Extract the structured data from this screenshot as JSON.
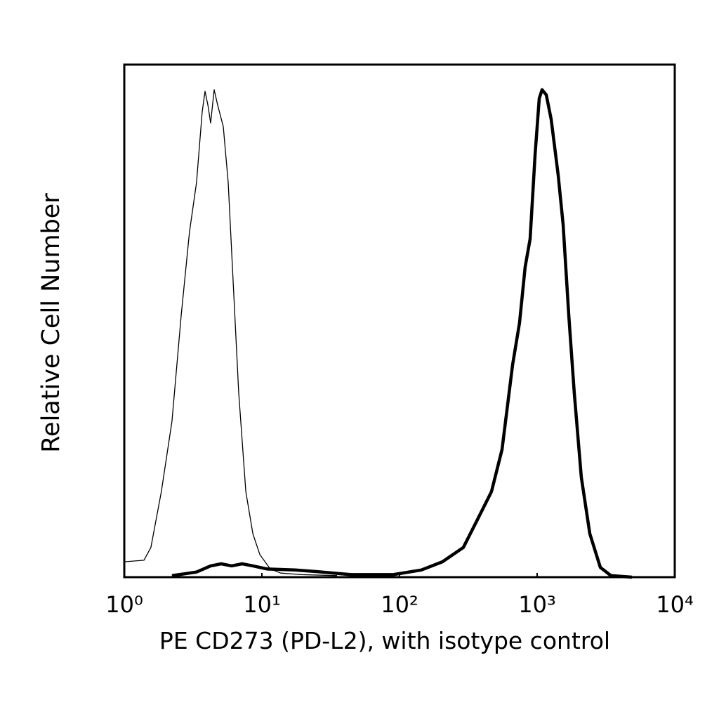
{
  "chart_data": {
    "type": "line",
    "x_label": "PE CD273 (PD-L2), with isotype control",
    "y_label": "Relative Cell Number",
    "xscale": "log",
    "xlim": [
      1,
      10000
    ],
    "xticks": [
      {
        "value": 1,
        "label": "10⁰"
      },
      {
        "value": 10,
        "label": "10¹"
      },
      {
        "value": 100,
        "label": "10²"
      },
      {
        "value": 1000,
        "label": "10³"
      },
      {
        "value": 10000,
        "label": "10⁴"
      }
    ],
    "ylim": [
      0,
      100
    ],
    "series": [
      {
        "color": "#000000",
        "line_width": 1.3,
        "x": [
          1.0,
          1.39,
          1.56,
          1.86,
          2.22,
          2.59,
          2.98,
          3.35,
          3.68,
          3.86,
          4.05,
          4.24,
          4.5,
          4.77,
          5.24,
          5.69,
          6.18,
          6.79,
          7.64,
          8.59,
          9.66,
          11.5,
          13.7,
          19.5,
          35.2
        ],
        "values": [
          3.0,
          3.3,
          5.8,
          16.7,
          30.4,
          51.0,
          67.4,
          77.0,
          90.7,
          94.8,
          92.1,
          88.6,
          95.1,
          92.1,
          87.9,
          77.0,
          57.8,
          35.9,
          16.7,
          8.5,
          4.4,
          1.6,
          0.8,
          0.5,
          0.3
        ]
      },
      {
        "color": "#000000",
        "line_width": 4.5,
        "x": [
          2.22,
          3.35,
          4.24,
          5.06,
          6.03,
          7.19,
          8.59,
          10.9,
          17.4,
          24.7,
          44.4,
          89.9,
          144,
          205,
          291,
          368,
          466,
          556,
          663,
          745,
          818,
          889,
          966,
          1036,
          1086,
          1165,
          1265,
          1422,
          1545,
          1698,
          1862,
          2094,
          2414,
          2877,
          3436,
          4887
        ],
        "values": [
          0.3,
          1.0,
          2.2,
          2.6,
          2.2,
          2.6,
          2.2,
          1.6,
          1.4,
          1.1,
          0.5,
          0.5,
          1.4,
          3.0,
          5.8,
          11.2,
          16.7,
          24.9,
          41.4,
          49.6,
          60.5,
          66.0,
          82.5,
          93.4,
          95.1,
          94.1,
          89.3,
          78.4,
          68.8,
          51.0,
          35.9,
          19.5,
          8.5,
          1.9,
          0.3,
          0
        ]
      }
    ]
  }
}
